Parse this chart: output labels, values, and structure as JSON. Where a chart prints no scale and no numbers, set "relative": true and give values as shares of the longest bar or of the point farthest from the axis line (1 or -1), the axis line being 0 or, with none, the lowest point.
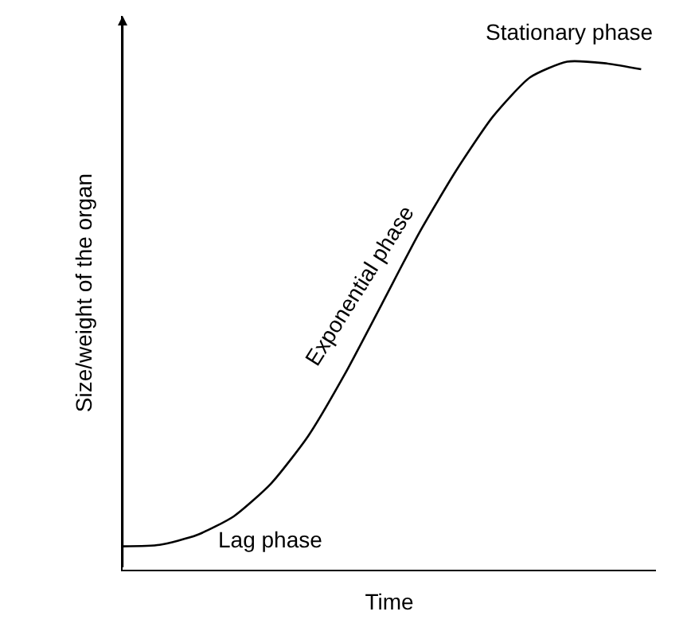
{
  "chart_data": {
    "type": "line",
    "relative": true,
    "xlabel": "Time",
    "ylabel": "Size/weight of the organ",
    "categories": [
      null,
      null,
      null,
      null,
      null,
      null,
      null,
      null,
      null,
      null,
      null,
      null,
      null,
      null,
      null
    ],
    "series": [
      {
        "color": "#000000",
        "values": [
          0.046,
          0.049,
          0.068,
          0.105,
          0.169,
          0.262,
          0.385,
          0.523,
          0.662,
          0.785,
          0.892,
          0.969,
          1.0,
          0.997,
          0.985
        ]
      }
    ],
    "annotations": [
      "Stationary phase",
      "Exponential phase",
      "Lag phase"
    ],
    "marker": "none",
    "line_style": "solid"
  }
}
